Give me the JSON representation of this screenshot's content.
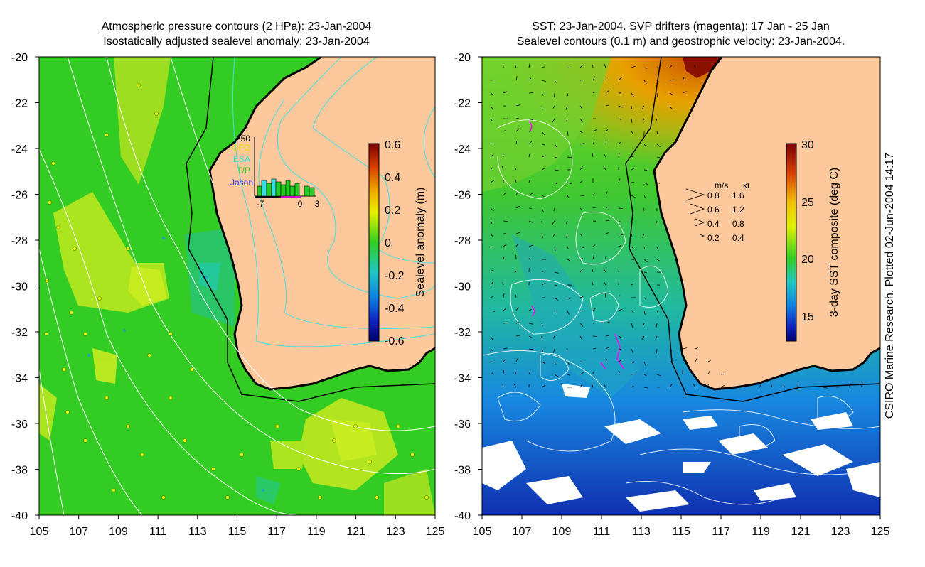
{
  "left_panel": {
    "title_line1": "Atmospheric pressure contours (2 HPa): 23-Jan-2004",
    "title_line2": "Isostatically adjusted sealevel anomaly: 23-Jan-2004",
    "colorbar_label": "Sealevel anomaly (m)",
    "colorbar_ticks": [
      "0.6",
      "0.4",
      "0.2",
      "0",
      "-0.2",
      "-0.4",
      "-0.6"
    ],
    "inset": {
      "ymax_label": "250",
      "legend": [
        {
          "label": "GFO",
          "color": "#d8e000"
        },
        {
          "label": "ESA",
          "color": "#33e0e0"
        },
        {
          "label": "T/P",
          "color": "#22cc22"
        },
        {
          "label": "Jason",
          "color": "#3333ff"
        }
      ],
      "x_labels": [
        "-7",
        "0",
        "3"
      ]
    }
  },
  "right_panel": {
    "title_line1": "SST: 23-Jan-2004. SVP drifters (magenta): 17 Jan - 25 Jan",
    "title_line2": "Sealevel contours (0.1 m) and geostrophic velocity: 23-Jan-2004.",
    "colorbar_label": "3-day SST composite (deg C)",
    "colorbar_ticks": [
      "30",
      "25",
      "20",
      "15"
    ],
    "velocity_legend": {
      "header_ms": "m/s",
      "header_kt": "kt",
      "rows": [
        {
          "ms": "0.8",
          "kt": "1.6"
        },
        {
          "ms": "0.6",
          "kt": "1.2"
        },
        {
          "ms": "0.4",
          "kt": "0.8"
        },
        {
          "ms": "0.2",
          "kt": "0.4"
        }
      ]
    }
  },
  "axes": {
    "lat_ticks": [
      "-20",
      "-22",
      "-24",
      "-26",
      "-28",
      "-30",
      "-32",
      "-34",
      "-36",
      "-38",
      "-40"
    ],
    "lon_ticks": [
      "105",
      "107",
      "109",
      "111",
      "113",
      "115",
      "117",
      "119",
      "121",
      "123",
      "125"
    ]
  },
  "credit": "CSIRO Marine Research. Plotted 02-Jun-2004 14:17",
  "colors": {
    "land": "#fcc89c",
    "ocean_mean": "#33cc22",
    "sla_high": "#d8f020",
    "contour_pressure": "#ffffff",
    "contour_sealevel": "#40e0e0"
  }
}
